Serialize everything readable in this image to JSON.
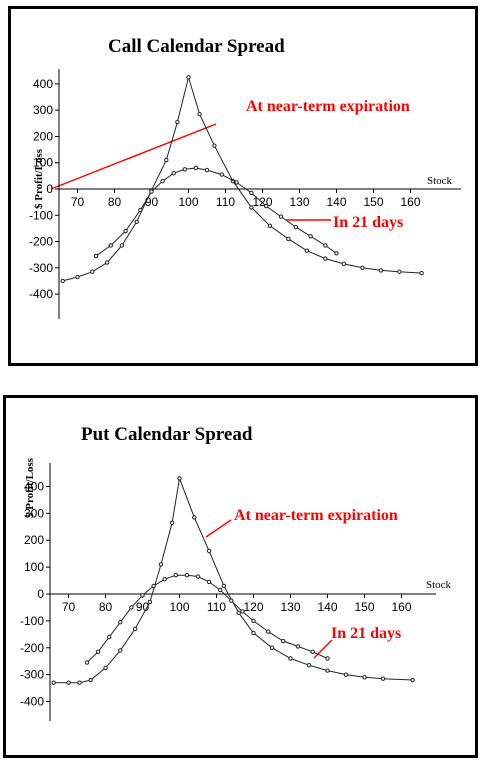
{
  "chart_data": [
    {
      "type": "line",
      "title": "Call Calendar Spread",
      "xlabel": "Stock",
      "ylabel": "$ Profit/Loss",
      "xlim": [
        65,
        162
      ],
      "ylim": [
        -450,
        450
      ],
      "x_ticks": [
        70,
        80,
        90,
        100,
        110,
        120,
        130,
        140,
        150,
        160
      ],
      "y_ticks": [
        400,
        300,
        200,
        100,
        0,
        -100,
        -200,
        -300,
        -400
      ],
      "grid": false,
      "annotation_color": "#ff0000",
      "series": [
        {
          "name": "At near-term expiration",
          "x": [
            66,
            70,
            74,
            78,
            82,
            86,
            90,
            94,
            97,
            100,
            103,
            107,
            112,
            117,
            122,
            127,
            132,
            137,
            142,
            147,
            152,
            157,
            163
          ],
          "y": [
            -350,
            -335,
            -315,
            -280,
            -215,
            -125,
            -5,
            110,
            255,
            425,
            285,
            165,
            30,
            -70,
            -140,
            -190,
            -235,
            -265,
            -285,
            -300,
            -310,
            -315,
            -320
          ]
        },
        {
          "name": "In 21 days",
          "x": [
            75,
            79,
            83,
            87,
            90,
            93,
            96,
            99,
            102,
            105,
            109,
            113,
            117,
            121,
            125,
            129,
            133,
            137,
            140
          ],
          "y": [
            -255,
            -215,
            -160,
            -80,
            -10,
            30,
            60,
            75,
            80,
            72,
            55,
            25,
            -15,
            -65,
            -105,
            -145,
            -180,
            -215,
            -245
          ]
        }
      ],
      "annotations": [
        "At near-term expiration",
        "In 21 days"
      ]
    },
    {
      "type": "line",
      "title": "Put Calendar Spread",
      "xlabel": "Stock",
      "ylabel": "$ Profit/Loss",
      "xlim": [
        65,
        162
      ],
      "ylim": [
        -450,
        450
      ],
      "x_ticks": [
        70,
        80,
        90,
        100,
        110,
        120,
        130,
        140,
        150,
        160
      ],
      "y_ticks": [
        400,
        300,
        200,
        100,
        0,
        -100,
        -200,
        -300,
        -400
      ],
      "grid": false,
      "annotation_color": "#ff0000",
      "series": [
        {
          "name": "At near-term expiration",
          "x": [
            66,
            70,
            73,
            76,
            80,
            84,
            88,
            92,
            95,
            98,
            100,
            104,
            108,
            112,
            116,
            120,
            125,
            130,
            135,
            140,
            145,
            150,
            155,
            163
          ],
          "y": [
            -330,
            -330,
            -330,
            -320,
            -275,
            -210,
            -130,
            -30,
            110,
            265,
            430,
            285,
            160,
            30,
            -70,
            -145,
            -200,
            -240,
            -265,
            -285,
            -300,
            -310,
            -315,
            -320
          ]
        },
        {
          "name": "In 21 days",
          "x": [
            75,
            78,
            81,
            84,
            87,
            90,
            93,
            96,
            99,
            102,
            105,
            108,
            111,
            114,
            117,
            120,
            124,
            128,
            132,
            136,
            140
          ],
          "y": [
            -255,
            -215,
            -160,
            -105,
            -50,
            -5,
            30,
            55,
            70,
            70,
            65,
            45,
            15,
            -25,
            -65,
            -100,
            -140,
            -175,
            -195,
            -215,
            -240
          ]
        }
      ],
      "annotations": [
        "At near-term expiration",
        "In 21 days"
      ]
    }
  ]
}
